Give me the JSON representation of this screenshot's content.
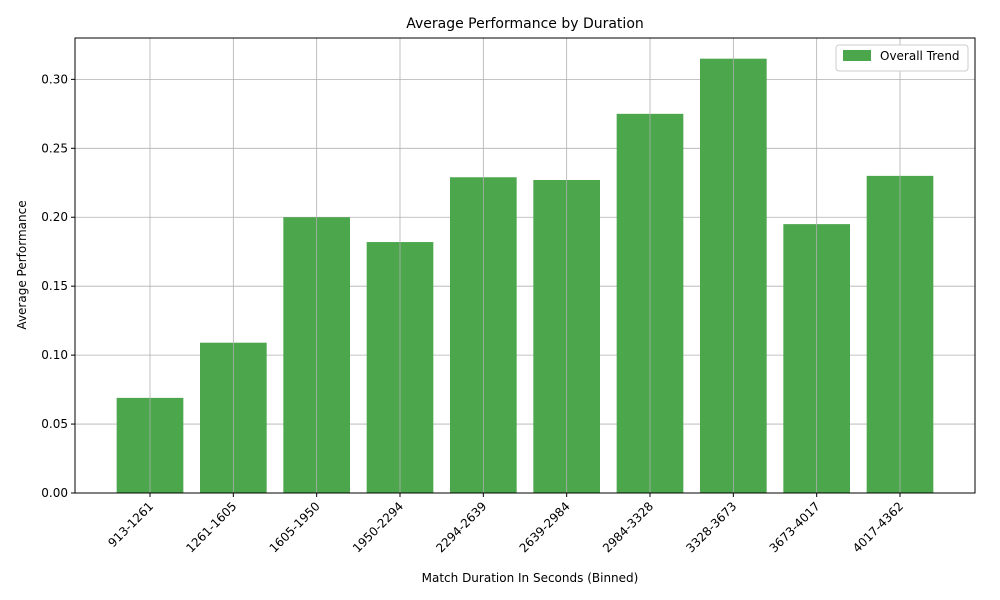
{
  "chart_data": {
    "type": "bar",
    "title": "Average Performance by Duration",
    "xlabel": "Match Duration In Seconds (Binned)",
    "ylabel": "Average Performance",
    "categories": [
      "913-1261",
      "1261-1605",
      "1605-1950",
      "1950-2294",
      "2294-2639",
      "2639-2984",
      "2984-3328",
      "3328-3673",
      "3673-4017",
      "4017-4362"
    ],
    "series": [
      {
        "name": "Overall Trend",
        "values": [
          0.069,
          0.109,
          0.2,
          0.182,
          0.229,
          0.227,
          0.275,
          0.315,
          0.195,
          0.23
        ]
      }
    ],
    "ylim": [
      0,
      0.33
    ],
    "yticks": [
      "0.00",
      "0.05",
      "0.10",
      "0.15",
      "0.20",
      "0.25",
      "0.30"
    ],
    "grid": true,
    "legend_position": "top-right",
    "bar_color": "#4ca64c"
  }
}
